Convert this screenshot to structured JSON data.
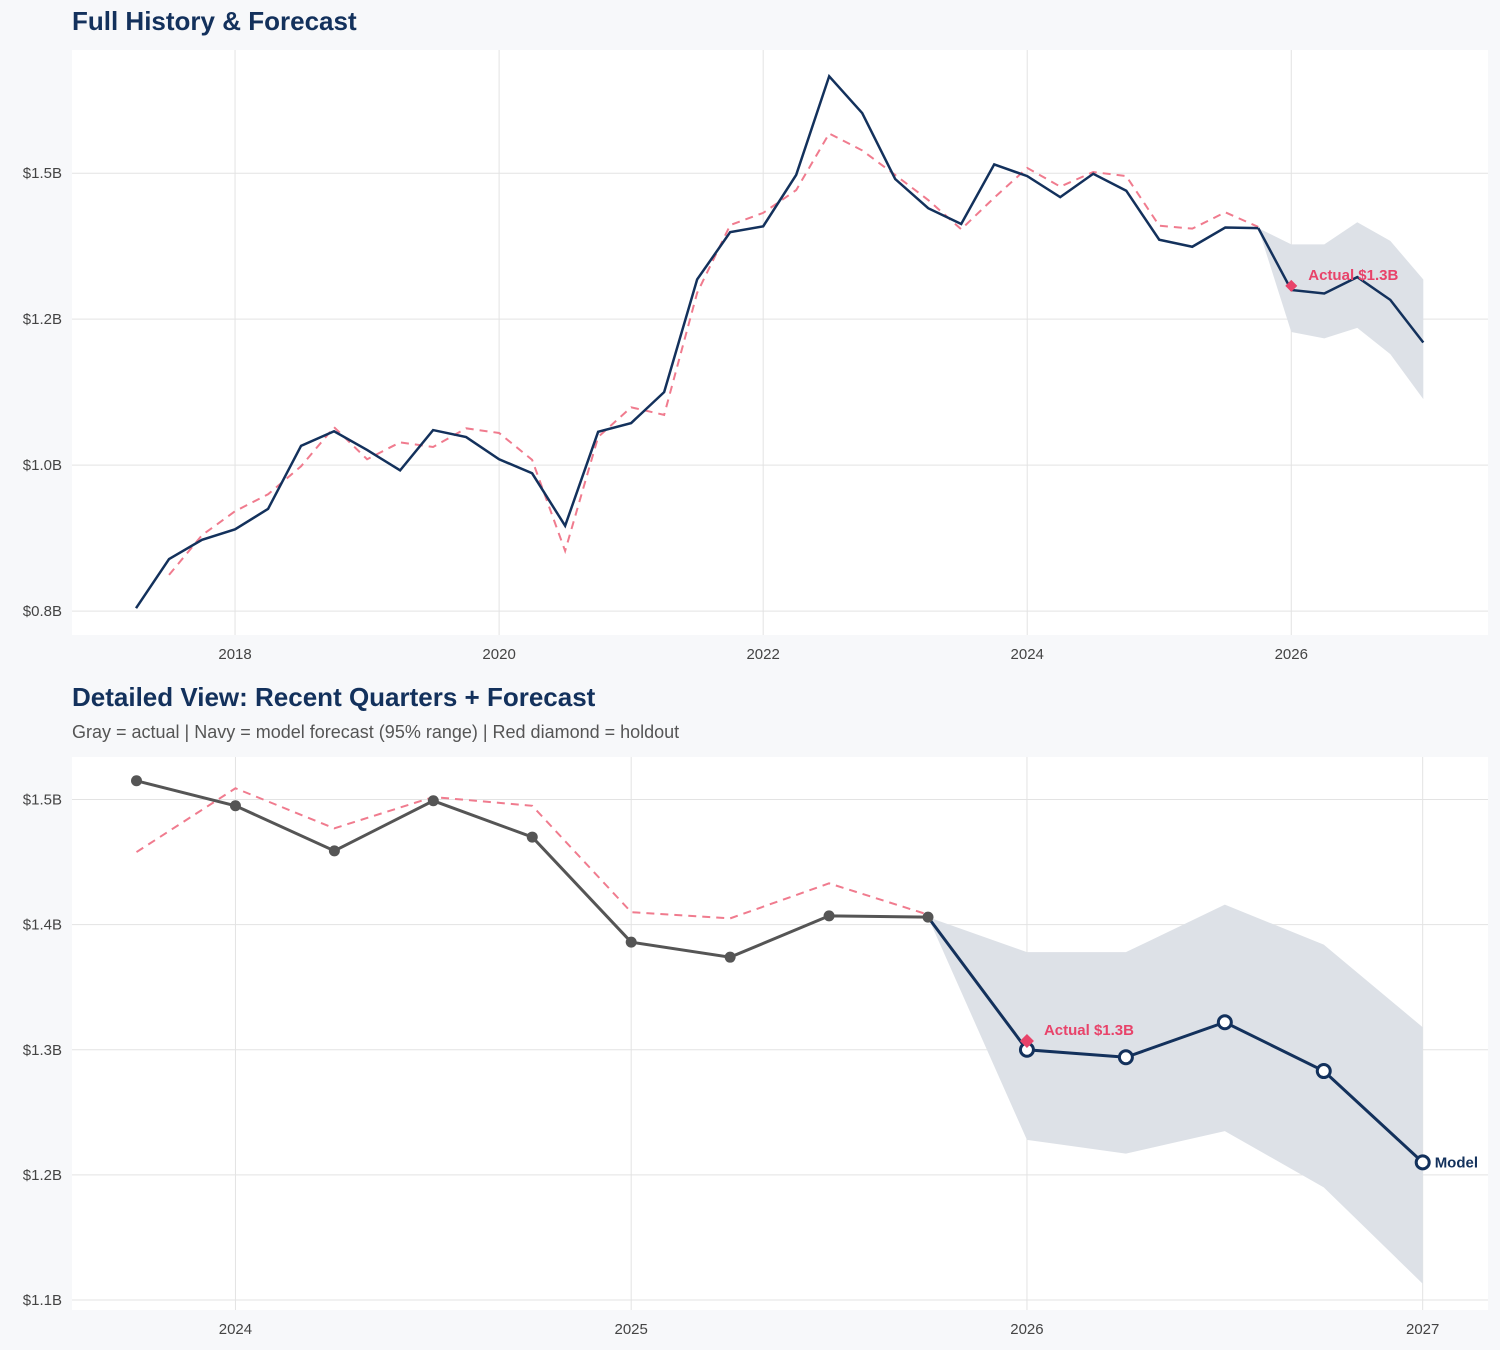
{
  "colors": {
    "navy": "#13315c",
    "red": "#e8436a",
    "red_dashed": "#f07b8e",
    "gray": "#555555",
    "band": "#dde1e7",
    "grid": "#e3e3e3"
  },
  "chart_data": [
    {
      "type": "line",
      "title": "Full History & Forecast",
      "xlim": [
        2016.765,
        2027.49
      ],
      "ylim": [
        0.709,
        1.711
      ],
      "x_ticks": [
        2018,
        2020,
        2022,
        2024,
        2026
      ],
      "x_tick_labels": [
        "2018",
        "2020",
        "2022",
        "2024",
        "2026"
      ],
      "y_ticks": [
        0.75,
        1.0,
        1.25,
        1.5
      ],
      "y_tick_labels": [
        "$0.8B",
        "$1.0B",
        "$1.2B",
        "$1.5B"
      ],
      "grid": true,
      "actual": {
        "x": [
          2017.25,
          2017.5,
          2017.75,
          2018,
          2018.25,
          2018.5,
          2018.75,
          2019,
          2019.25,
          2019.5,
          2019.75,
          2020,
          2020.25,
          2020.5,
          2020.75,
          2021,
          2021.25,
          2021.5,
          2021.75,
          2022,
          2022.25,
          2022.5,
          2022.75,
          2023,
          2023.25,
          2023.5,
          2023.75,
          2024,
          2024.25,
          2024.5,
          2024.75,
          2025,
          2025.25,
          2025.5,
          2025.75
        ],
        "y": [
          0.755,
          0.839,
          0.872,
          0.89,
          0.925,
          1.033,
          1.058,
          1.026,
          0.991,
          1.06,
          1.048,
          1.01,
          0.986,
          0.896,
          1.057,
          1.072,
          1.125,
          1.318,
          1.399,
          1.409,
          1.497,
          1.666,
          1.603,
          1.49,
          1.44,
          1.413,
          1.515,
          1.495,
          1.459,
          1.499,
          1.47,
          1.386,
          1.374,
          1.407,
          1.406
        ]
      },
      "fitted": {
        "x": [
          2017.5,
          2017.75,
          2018,
          2018.25,
          2018.5,
          2018.75,
          2019,
          2019.25,
          2019.5,
          2019.75,
          2020,
          2020.25,
          2020.5,
          2020.75,
          2021,
          2021.25,
          2021.5,
          2021.75,
          2022,
          2022.25,
          2022.5,
          2022.75,
          2023,
          2023.25,
          2023.5,
          2023.75,
          2024,
          2024.25,
          2024.5,
          2024.75,
          2025,
          2025.25,
          2025.5,
          2025.75
        ],
        "y": [
          0.812,
          0.88,
          0.921,
          0.95,
          0.998,
          1.065,
          1.01,
          1.039,
          1.031,
          1.063,
          1.055,
          1.009,
          0.853,
          1.048,
          1.099,
          1.086,
          1.295,
          1.411,
          1.432,
          1.471,
          1.568,
          1.539,
          1.497,
          1.454,
          1.404,
          1.458,
          1.509,
          1.477,
          1.502,
          1.495,
          1.41,
          1.405,
          1.433,
          1.408
        ]
      },
      "forecast": {
        "x": [
          2025.75,
          2026,
          2026.25,
          2026.5,
          2026.75,
          2027
        ],
        "y": [
          1.406,
          1.3,
          1.294,
          1.322,
          1.283,
          1.21
        ],
        "upper": [
          1.406,
          1.378,
          1.378,
          1.416,
          1.384,
          1.318
        ],
        "lower": [
          1.406,
          1.228,
          1.217,
          1.235,
          1.19,
          1.113
        ]
      },
      "holdout": {
        "x": 2026,
        "y": 1.307,
        "label": "Actual $1.3B"
      }
    },
    {
      "type": "line",
      "title": "Detailed View: Recent Quarters + Forecast",
      "subtitle": "Gray = actual  |  Navy = model forecast (95% range)  |  Red diamond = holdout",
      "xlim": [
        2023.587,
        2027.165
      ],
      "ylim": [
        1.092,
        1.534
      ],
      "x_ticks": [
        2024,
        2025,
        2026,
        2027
      ],
      "x_tick_labels": [
        "2024",
        "2025",
        "2026",
        "2027"
      ],
      "y_ticks": [
        1.1,
        1.2,
        1.3,
        1.4,
        1.5
      ],
      "y_tick_labels": [
        "$1.1B",
        "$1.2B",
        "$1.3B",
        "$1.4B",
        "$1.5B"
      ],
      "grid": true,
      "actual": {
        "x": [
          2023.75,
          2024,
          2024.25,
          2024.5,
          2024.75,
          2025,
          2025.25,
          2025.5,
          2025.75
        ],
        "y": [
          1.515,
          1.495,
          1.459,
          1.499,
          1.47,
          1.386,
          1.374,
          1.407,
          1.406
        ]
      },
      "fitted": {
        "x": [
          2023.75,
          2024,
          2024.25,
          2024.5,
          2024.75,
          2025,
          2025.25,
          2025.5,
          2025.75
        ],
        "y": [
          1.458,
          1.509,
          1.477,
          1.502,
          1.495,
          1.41,
          1.405,
          1.433,
          1.408
        ]
      },
      "forecast": {
        "x": [
          2025.75,
          2026,
          2026.25,
          2026.5,
          2026.75,
          2027
        ],
        "y": [
          1.406,
          1.3,
          1.294,
          1.322,
          1.283,
          1.21
        ],
        "upper": [
          1.406,
          1.378,
          1.378,
          1.416,
          1.384,
          1.318
        ],
        "lower": [
          1.406,
          1.228,
          1.217,
          1.235,
          1.19,
          1.113
        ]
      },
      "holdout": {
        "x": 2026,
        "y": 1.307,
        "label": "Actual $1.3B"
      },
      "end_label": "Model"
    }
  ]
}
